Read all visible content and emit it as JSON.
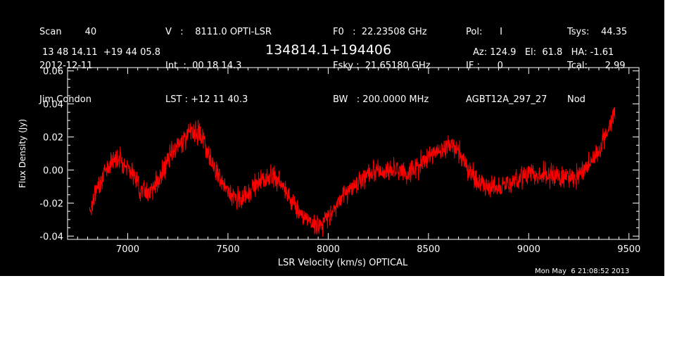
{
  "header": {
    "left": [
      "Scan        40",
      "2012-12-11",
      "Jim Condon"
    ],
    "center_left": [
      "V   :    8111.0 OPTI-LSR",
      "Int  :  00 18 14.3",
      "LST : +12 11 40.3"
    ],
    "center_right": [
      "F0   :  22.23508 GHz",
      "Fsky :  21.65180 GHz",
      "BW   : 200.0000 MHz"
    ],
    "right_a": [
      "Pol:      I",
      "IF :      0",
      "AGBT12A_297_27"
    ],
    "right_b": [
      "Tsys:    44.35",
      "Tcal:      2.99",
      "Nod"
    ],
    "coords": "13 48 14.11  +19 44 05.8",
    "source": "134814.1+194406",
    "pointing": "Az: 124.9   El:  61.8   HA: -1.61"
  },
  "footer": {
    "timestamp": "Mon May  6 21:08:52 2013"
  },
  "colors": {
    "background": "#000000",
    "axes": "#ffffff",
    "trace": "#ff0000"
  },
  "chart_data": {
    "type": "line",
    "title": "134814.1+194406",
    "xlabel": "LSR Velocity (km/s) OPTICAL",
    "ylabel": "Flux Density (Jy)",
    "xlim": [
      6700,
      9550
    ],
    "ylim": [
      -0.042,
      0.062
    ],
    "x_ticks": [
      7000,
      7500,
      8000,
      8500,
      9000,
      9500
    ],
    "x_tick_labels": [
      "7000",
      "7500",
      "8000",
      "8500",
      "9000",
      "9500"
    ],
    "y_ticks": [
      -0.04,
      -0.02,
      0.0,
      0.02,
      0.04,
      0.06
    ],
    "y_tick_labels": [
      "-0.04",
      "-0.02",
      "0.00",
      "0.02",
      "0.04",
      "0.06"
    ],
    "grid": false,
    "series": [
      {
        "x": [
          6810,
          6850,
          6900,
          6940,
          6970,
          7000,
          7030,
          7060,
          7090,
          7120,
          7160,
          7200,
          7250,
          7300,
          7340,
          7370,
          7400,
          7440,
          7480,
          7520,
          7560,
          7600,
          7640,
          7680,
          7720,
          7760,
          7800,
          7840,
          7880,
          7920,
          7950,
          7980,
          8020,
          8060,
          8100,
          8150,
          8200,
          8250,
          8300,
          8350,
          8400,
          8450,
          8500,
          8550,
          8600,
          8640,
          8680,
          8720,
          8760,
          8800,
          8850,
          8900,
          8950,
          9000,
          9050,
          9100,
          9150,
          9200,
          9250,
          9300,
          9350,
          9400,
          9430
        ],
        "y": [
          -0.025,
          -0.01,
          0.002,
          0.008,
          0.006,
          0.002,
          -0.004,
          -0.01,
          -0.013,
          -0.012,
          -0.005,
          0.005,
          0.015,
          0.022,
          0.024,
          0.02,
          0.012,
          0.0,
          -0.01,
          -0.016,
          -0.018,
          -0.014,
          -0.008,
          -0.006,
          -0.005,
          -0.008,
          -0.015,
          -0.023,
          -0.028,
          -0.032,
          -0.033,
          -0.031,
          -0.025,
          -0.018,
          -0.012,
          -0.007,
          -0.003,
          0.0,
          -0.001,
          0.0,
          -0.002,
          0.002,
          0.008,
          0.012,
          0.015,
          0.013,
          0.005,
          -0.003,
          -0.008,
          -0.01,
          -0.01,
          -0.008,
          -0.005,
          -0.002,
          -0.003,
          -0.003,
          -0.004,
          -0.005,
          -0.002,
          0.004,
          0.012,
          0.025,
          0.035
        ]
      }
    ]
  }
}
